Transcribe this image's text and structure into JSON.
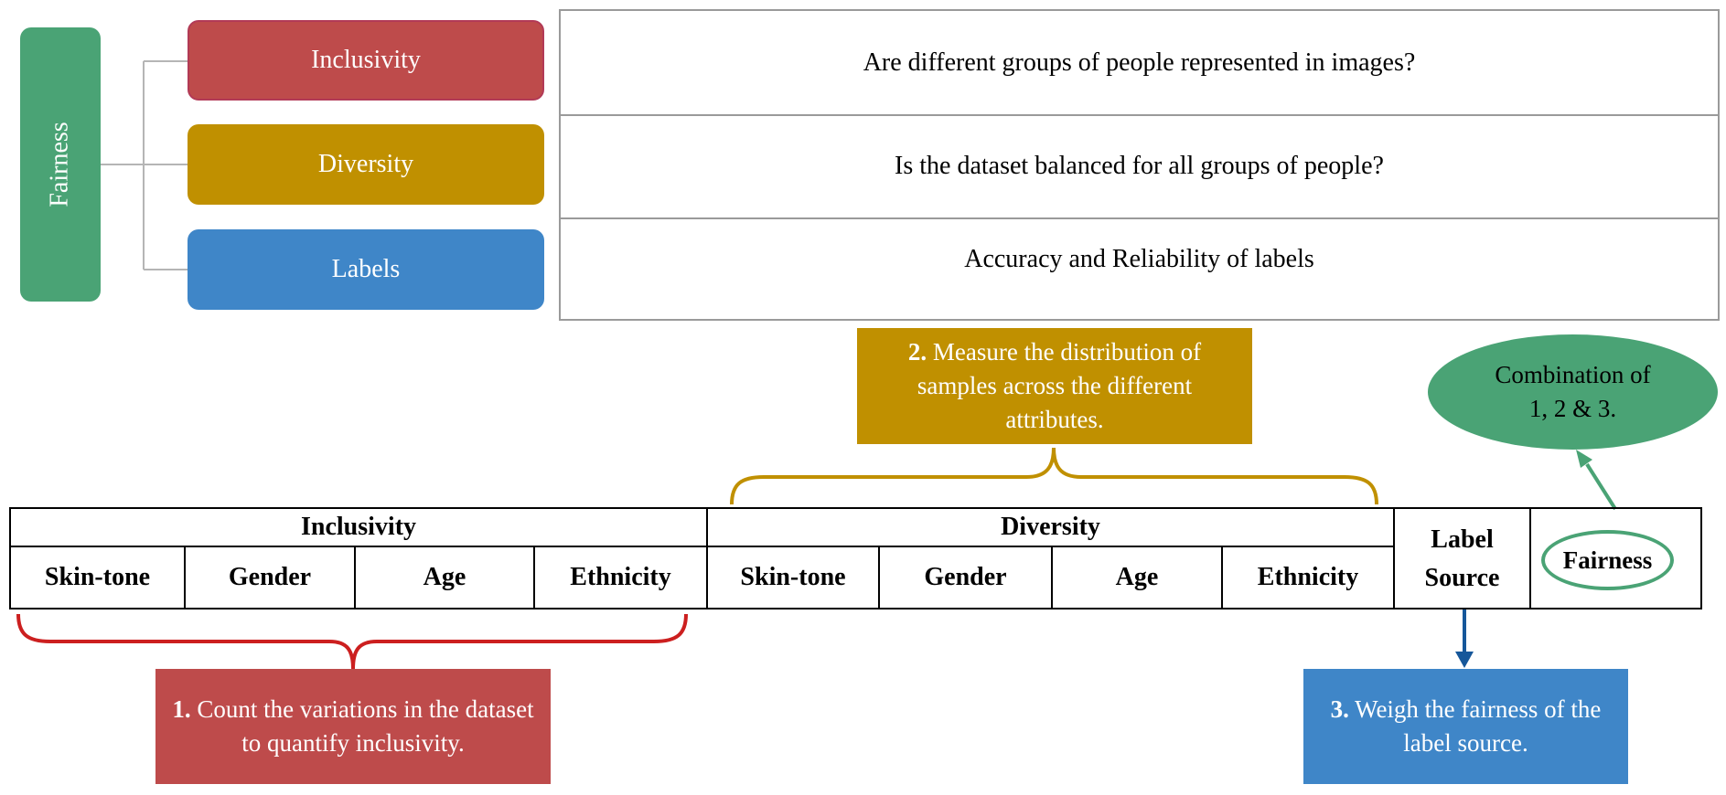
{
  "hierarchy": {
    "root": "Fairness",
    "children": [
      "Inclusivity",
      "Diversity",
      "Labels"
    ]
  },
  "questions": [
    "Are different groups of people represented in images?",
    "Is the dataset balanced for all groups of people?",
    "Accuracy and Reliability of labels"
  ],
  "steps": {
    "step1": {
      "number": "1.",
      "text": "Count the variations in the dataset to quantify inclusivity."
    },
    "step2": {
      "number": "2.",
      "text": "Measure the distribution of samples across the different attributes."
    },
    "step3": {
      "number": "3.",
      "text": "Weigh the fairness of the label source."
    },
    "combination": "Combination of 1, 2 & 3."
  },
  "table": {
    "groups": [
      {
        "label": "Inclusivity",
        "attributes": [
          "Skin-tone",
          "Gender",
          "Age",
          "Ethnicity"
        ]
      },
      {
        "label": "Diversity",
        "attributes": [
          "Skin-tone",
          "Gender",
          "Age",
          "Ethnicity"
        ]
      }
    ],
    "label_source": "Label Source",
    "fairness": "Fairness"
  },
  "colors": {
    "green": "#4aa375",
    "red": "#be4b4b",
    "gold": "#c09000",
    "blue": "#3f86c8",
    "dark_blue": "#16579a",
    "gray": "#9a9a9a"
  }
}
